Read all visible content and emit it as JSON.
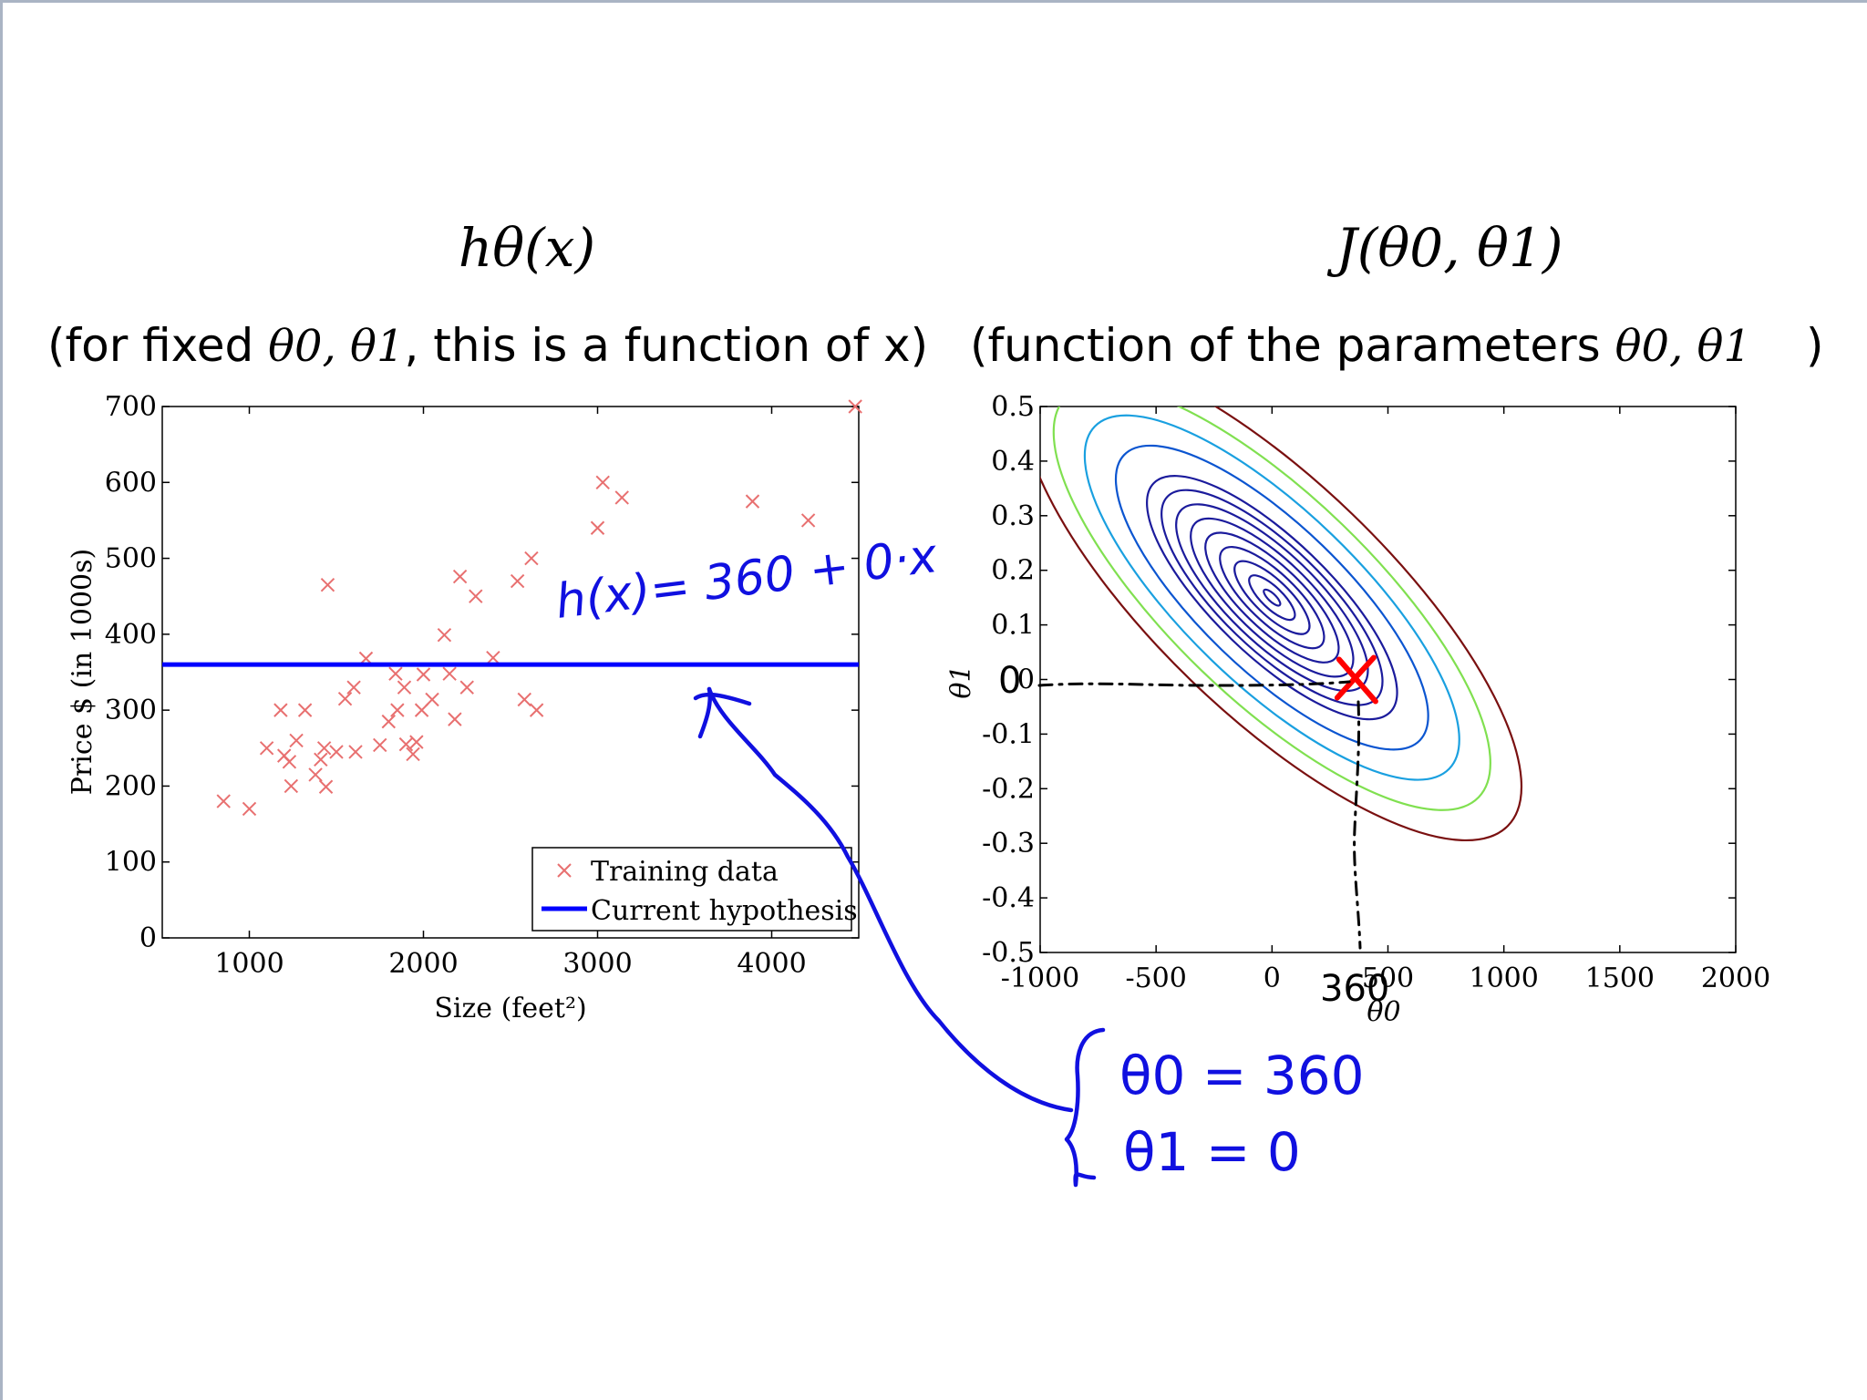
{
  "titles": {
    "left_formula": "hθ(x)",
    "right_formula": "J(θ0, θ1)",
    "left_caption_pre": "(for fixed ",
    "left_caption_math": "θ0, θ1",
    "left_caption_post": ", this is a function of x)",
    "right_caption_pre": "(function of the parameters ",
    "right_caption_math": "θ0, θ1",
    "right_caption_post": ")"
  },
  "annotations": {
    "hypothesis_note": "h(x)= 360 + 0·x",
    "theta0_note": "θ0 = 360",
    "theta1_note": "θ1 = 0",
    "x_mark": "360",
    "y_mark": "0",
    "ink_color": "#1010e0"
  },
  "chart_data": [
    {
      "type": "scatter",
      "xlabel": "Size (feet²)",
      "ylabel": "Price $ (in 1000s)",
      "xlim": [
        500,
        4500
      ],
      "ylim": [
        0,
        700
      ],
      "xticks": [
        1000,
        2000,
        3000,
        4000
      ],
      "yticks": [
        0,
        100,
        200,
        300,
        400,
        500,
        600,
        700
      ],
      "legend_position": "bottom-right",
      "series": [
        {
          "name": "Training data",
          "marker": "x",
          "color": "#e87070",
          "points": [
            [
              852,
              180
            ],
            [
              1000,
              170
            ],
            [
              1100,
              250
            ],
            [
              1180,
              300
            ],
            [
              1200,
              240
            ],
            [
              1230,
              232
            ],
            [
              1240,
              200
            ],
            [
              1270,
              260
            ],
            [
              1320,
              300
            ],
            [
              1380,
              215
            ],
            [
              1410,
              235
            ],
            [
              1430,
              250
            ],
            [
              1440,
              199
            ],
            [
              1450,
              465
            ],
            [
              1500,
              245
            ],
            [
              1550,
              315
            ],
            [
              1600,
              330
            ],
            [
              1610,
              245
            ],
            [
              1670,
              368
            ],
            [
              1750,
              254
            ],
            [
              1800,
              285
            ],
            [
              1840,
              348
            ],
            [
              1850,
              300
            ],
            [
              1890,
              330
            ],
            [
              1900,
              255
            ],
            [
              1940,
              242
            ],
            [
              1960,
              258
            ],
            [
              1990,
              300
            ],
            [
              2000,
              347
            ],
            [
              2050,
              314
            ],
            [
              2120,
              399
            ],
            [
              2150,
              348
            ],
            [
              2180,
              288
            ],
            [
              2210,
              476
            ],
            [
              2250,
              330
            ],
            [
              2300,
              450
            ],
            [
              2400,
              369
            ],
            [
              2540,
              470
            ],
            [
              2580,
              314
            ],
            [
              2620,
              500
            ],
            [
              2650,
              300
            ],
            [
              3000,
              540
            ],
            [
              3030,
              600
            ],
            [
              3140,
              580
            ],
            [
              3890,
              575
            ],
            [
              4210,
              550
            ],
            [
              4480,
              700
            ]
          ]
        },
        {
          "name": "Current hypothesis",
          "type": "line",
          "color": "#0000ff",
          "intercept": 360,
          "slope": 0
        }
      ]
    },
    {
      "type": "contour",
      "xlabel": "θ0",
      "ylabel": "θ1",
      "xlim": [
        -1000,
        2000
      ],
      "ylim": [
        -0.5,
        0.5
      ],
      "xticks": [
        -1000,
        -500,
        0,
        500,
        1000,
        1500,
        2000
      ],
      "yticks": [
        -0.5,
        -0.4,
        -0.3,
        -0.2,
        -0.1,
        0,
        0.1,
        0.2,
        0.3,
        0.4,
        0.5
      ],
      "center": [
        0,
        0.15
      ],
      "marked_point": {
        "theta0": 360,
        "theta1": 0,
        "color": "#ff0000"
      },
      "level_colors": [
        "#1b1b9c",
        "#1b1b9c",
        "#1b1b9c",
        "#1b1b9c",
        "#1b1b9c",
        "#1b1b9c",
        "#1b1b9c",
        "#1b1b9c",
        "#1b1b9c",
        "#0b55d0",
        "#1aa0e0",
        "#80e050",
        "#7a1010"
      ]
    }
  ]
}
